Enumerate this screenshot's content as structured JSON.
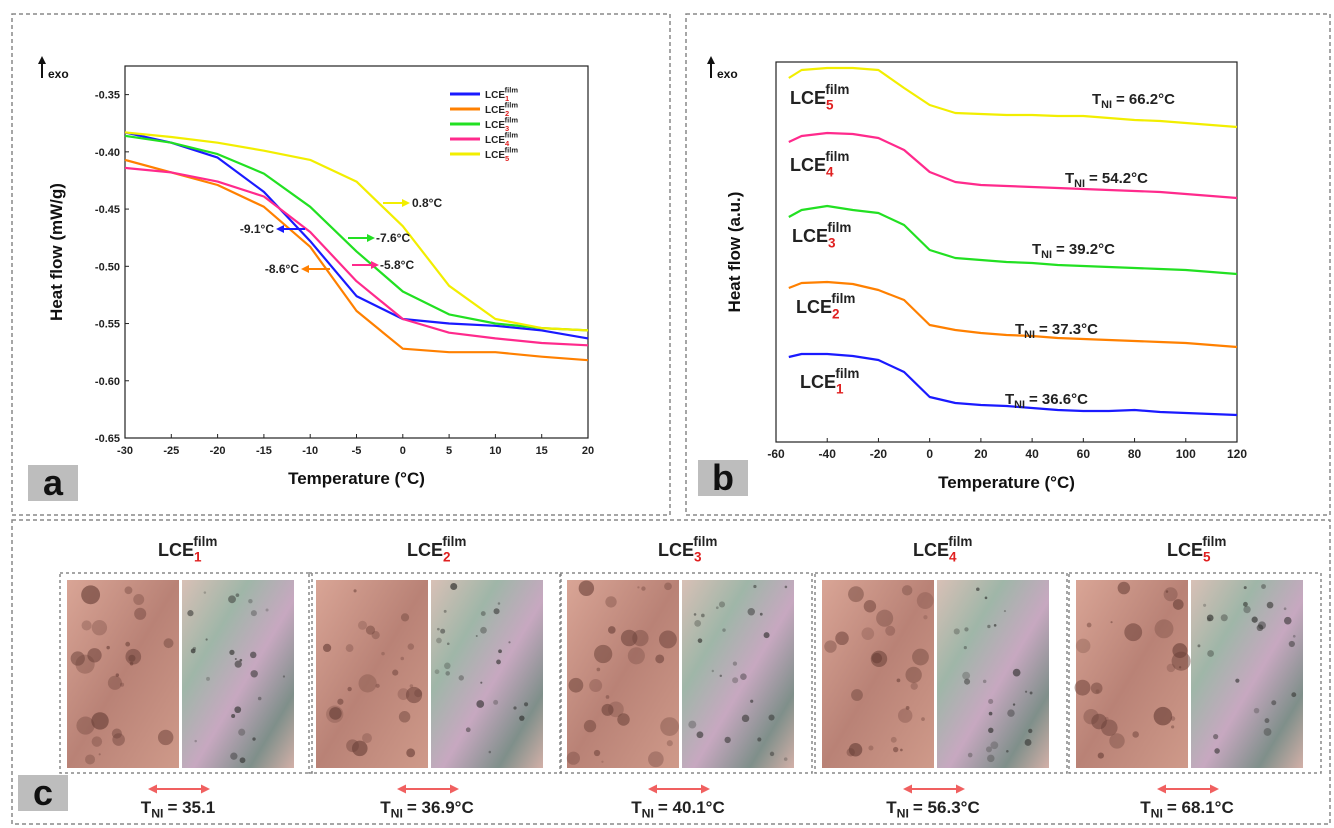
{
  "chart_data": [
    {
      "type": "line",
      "panel_label": "a",
      "exo": "exo",
      "xlabel": "Temperature (°C)",
      "ylabel": "Heat flow (mW/g)",
      "x": [
        -30,
        -25,
        -20,
        -15,
        -10,
        -5,
        0,
        5,
        10,
        15,
        20
      ],
      "xlim": [
        -30,
        20
      ],
      "xticks": [
        -30,
        -25,
        -20,
        -15,
        -10,
        -5,
        0,
        5,
        10,
        15,
        20
      ],
      "ylim": [
        -0.65,
        -0.325
      ],
      "yticks": [
        -0.65,
        {
          "value": -0.6,
          "label": "-0.60"
        },
        -0.55,
        {
          "value": -0.5,
          "label": "-0.50"
        },
        -0.45,
        {
          "value": -0.4,
          "label": "-0.40"
        },
        -0.35
      ],
      "legend": "upper right",
      "series": [
        {
          "name": "LCE",
          "sub": "1",
          "sup": "film",
          "color": "#1a1aff",
          "values": [
            -0.383,
            -0.392,
            -0.405,
            -0.435,
            -0.478,
            -0.526,
            -0.546,
            -0.55,
            -0.552,
            -0.556,
            -0.563
          ]
        },
        {
          "name": "LCE",
          "sub": "2",
          "sup": "film",
          "color": "#ff8000",
          "values": [
            -0.407,
            -0.418,
            -0.429,
            -0.448,
            -0.483,
            -0.539,
            -0.572,
            -0.575,
            -0.575,
            -0.579,
            -0.582
          ]
        },
        {
          "name": "LCE",
          "sub": "3",
          "sup": "film",
          "color": "#22e022",
          "values": [
            -0.386,
            -0.392,
            -0.402,
            -0.419,
            -0.448,
            -0.487,
            -0.522,
            -0.542,
            -0.55,
            -0.554,
            -0.556
          ]
        },
        {
          "name": "LCE",
          "sub": "4",
          "sup": "film",
          "color": "#ff2a8c",
          "values": [
            -0.414,
            -0.418,
            -0.426,
            -0.439,
            -0.47,
            -0.513,
            -0.546,
            -0.558,
            -0.563,
            -0.567,
            -0.569
          ]
        },
        {
          "name": "LCE",
          "sub": "5",
          "sup": "film",
          "color": "#f2ee00",
          "values": [
            -0.383,
            -0.387,
            -0.392,
            -0.399,
            -0.407,
            -0.426,
            -0.465,
            -0.517,
            -0.546,
            -0.554,
            -0.556
          ]
        }
      ],
      "annotations": [
        {
          "text": "0.8°C",
          "color": "#f2ee00"
        },
        {
          "text": "-9.1°C",
          "color": "#1a1aff"
        },
        {
          "text": "-7.6°C",
          "color": "#22e022"
        },
        {
          "text": "-8.6°C",
          "color": "#ff8000"
        },
        {
          "text": "-5.8°C",
          "color": "#ff2a8c"
        }
      ]
    },
    {
      "type": "line",
      "panel_label": "b",
      "exo": "exo",
      "xlabel": "Temperature (°C)",
      "ylabel": "Heat flow (a.u.)",
      "x": [
        -55,
        -50,
        -40,
        -30,
        -20,
        -10,
        0,
        10,
        20,
        30,
        40,
        50,
        60,
        70,
        80,
        90,
        100,
        110,
        120
      ],
      "xlim": [
        -60,
        120
      ],
      "xticks": [
        -60,
        -40,
        -20,
        0,
        20,
        40,
        60,
        80,
        100,
        120
      ],
      "ylim": [
        0,
        380
      ],
      "series": [
        {
          "name": "LCE",
          "sub": "1",
          "sup": "film",
          "color": "#1a1aff",
          "values": [
            85,
            88,
            88,
            86,
            82,
            70,
            45,
            39,
            37,
            36,
            34,
            32,
            31,
            31,
            32,
            30,
            29,
            28,
            27
          ],
          "tni": {
            "t": "T",
            "sub": "NI",
            "rest": "= 36.6°C"
          }
        },
        {
          "name": "LCE",
          "sub": "2",
          "sup": "film",
          "color": "#ff8000",
          "values": [
            154,
            159,
            160,
            158,
            152,
            142,
            117,
            112,
            109,
            107,
            106,
            104,
            103,
            102,
            101,
            100,
            99,
            97,
            95
          ],
          "tni": {
            "t": "T",
            "sub": "NI",
            "rest": "= 37.3°C"
          }
        },
        {
          "name": "LCE",
          "sub": "3",
          "sup": "film",
          "color": "#22e022",
          "values": [
            225,
            232,
            236,
            232,
            229,
            217,
            192,
            184,
            182,
            180,
            179,
            177,
            176,
            175,
            174,
            173,
            172,
            170,
            168
          ],
          "tni": {
            "t": "T",
            "sub": "NI",
            "rest": "= 39.2°C"
          }
        },
        {
          "name": "LCE",
          "sub": "4",
          "sup": "film",
          "color": "#ff2a8c",
          "values": [
            300,
            306,
            309,
            308,
            304,
            292,
            270,
            260,
            257,
            256,
            255,
            254,
            253,
            252,
            251,
            250,
            248,
            246,
            244
          ],
          "tni": {
            "t": "T",
            "sub": "NI",
            "rest": "= 54.2°C"
          }
        },
        {
          "name": "LCE",
          "sub": "5",
          "sup": "film",
          "color": "#f2ee00",
          "values": [
            364,
            372,
            374,
            374,
            372,
            354,
            337,
            329,
            328,
            327,
            327,
            326,
            326,
            324,
            322,
            321,
            319,
            317,
            315
          ],
          "tni": {
            "t": "T",
            "sub": "NI",
            "rest": "= 66.2°C"
          }
        }
      ]
    }
  ],
  "panel_c": {
    "panel_label": "c",
    "items": [
      {
        "name": "LCE",
        "sub": "1",
        "sup": "film",
        "tni": {
          "t": "T",
          "sub": "NI",
          "rest": "= 35.1"
        }
      },
      {
        "name": "LCE",
        "sub": "2",
        "sup": "film",
        "tni": {
          "t": "T",
          "sub": "NI",
          "rest": "= 36.9°C"
        }
      },
      {
        "name": "LCE",
        "sub": "3",
        "sup": "film",
        "tni": {
          "t": "T",
          "sub": "NI",
          "rest": "= 40.1°C"
        }
      },
      {
        "name": "LCE",
        "sub": "4",
        "sup": "film",
        "tni": {
          "t": "T",
          "sub": "NI",
          "rest": "= 56.3°C"
        }
      },
      {
        "name": "LCE",
        "sub": "5",
        "sup": "film",
        "tni": {
          "t": "T",
          "sub": "NI",
          "rest": "= 68.1°C"
        }
      }
    ]
  }
}
